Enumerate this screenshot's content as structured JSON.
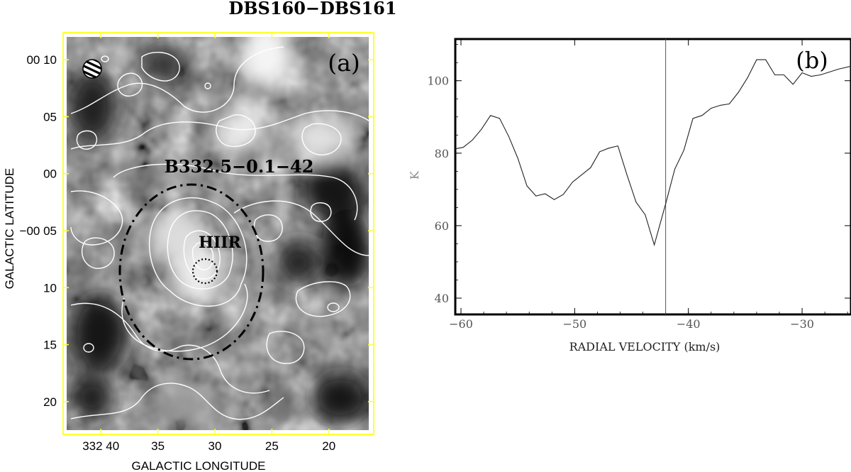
{
  "figure": {
    "title": "DBS160−DBS161"
  },
  "panel_a": {
    "label": "(a)",
    "ylabel": "GALACTIC LATITUDE",
    "xlabel": "GALACTIC LONGITUDE",
    "annotations": {
      "bubble": "B332.5−0.1−42",
      "hiir": "HIIR"
    },
    "beam_icon": "hatched-beam-icon"
  },
  "chart_data": [
    {
      "type": "heatmap",
      "panel": "a",
      "xlabel": "GALACTIC LONGITUDE",
      "ylabel": "GALACTIC LATITUDE",
      "x_ticks": [
        "332 40",
        "35",
        "30",
        "25",
        "20"
      ],
      "x_tick_values": [
        40,
        35,
        30,
        25,
        20
      ],
      "y_ticks": [
        "00 10",
        "05",
        "00",
        "−00 05",
        "10",
        "15",
        "20"
      ],
      "y_tick_values": [
        10,
        5,
        0,
        -5,
        -10,
        -15,
        -20
      ],
      "xlim": [
        43,
        16.5
      ],
      "ylim": [
        -22.5,
        12
      ],
      "annotations": [
        {
          "text": "B332.5−0.1−42",
          "x": 31.8,
          "y": 0.5
        },
        {
          "text": "HIIR",
          "x": 31.8,
          "y": -6.2
        }
      ],
      "ellipses": [
        {
          "name": "bubble",
          "style": "dash-dot",
          "cx": 32.8,
          "cy": -7.2,
          "rx": 6.3,
          "ry": 9.0
        },
        {
          "name": "hiir",
          "style": "dotted",
          "cx": 31.6,
          "cy": -8.6,
          "rx": 1.1,
          "ry": 1.1
        }
      ],
      "colors": {
        "frame": "#ffff33",
        "contour": "#ffffff"
      }
    },
    {
      "type": "line",
      "panel": "b",
      "label": "(b)",
      "xlabel": "RADIAL VELOCITY (km/s)",
      "ylabel": "K",
      "xlim": [
        -60.5,
        -25.7
      ],
      "ylim": [
        35.5,
        111.5
      ],
      "x_ticks": [
        -60,
        -50,
        -40,
        -30
      ],
      "x_tick_labels": [
        "−60",
        "−50",
        "−40",
        "−30"
      ],
      "y_ticks": [
        40,
        60,
        80,
        100
      ],
      "marker_line_x": -42.0,
      "x": [
        -60.5,
        -59.8,
        -59.0,
        -58.2,
        -57.4,
        -56.6,
        -55.8,
        -55.0,
        -54.2,
        -53.4,
        -52.6,
        -51.8,
        -51.0,
        -50.2,
        -49.4,
        -48.6,
        -47.8,
        -47.0,
        -46.2,
        -45.4,
        -44.6,
        -43.8,
        -43.0,
        -42.0,
        -41.2,
        -40.4,
        -39.6,
        -38.8,
        -38.0,
        -37.2,
        -36.4,
        -35.6,
        -34.8,
        -34.0,
        -33.2,
        -32.4,
        -31.6,
        -30.8,
        -30.0,
        -29.2,
        -28.4,
        -27.6,
        -26.8,
        -25.7
      ],
      "y": [
        81.2,
        81.6,
        83.6,
        86.6,
        90.4,
        89.6,
        84.6,
        78.6,
        71.0,
        68.2,
        68.8,
        67.2,
        68.6,
        72.0,
        74.0,
        76.0,
        80.4,
        81.4,
        82.0,
        74.0,
        66.5,
        63.0,
        54.7,
        66.0,
        75.6,
        80.8,
        89.6,
        90.4,
        92.4,
        93.2,
        93.6,
        96.8,
        100.8,
        105.8,
        105.8,
        101.6,
        101.6,
        99.0,
        102.2,
        101.2,
        101.6,
        102.4,
        103.2,
        104.0
      ],
      "series": [
        {
          "values": "y",
          "color": "#222222"
        }
      ]
    }
  ]
}
